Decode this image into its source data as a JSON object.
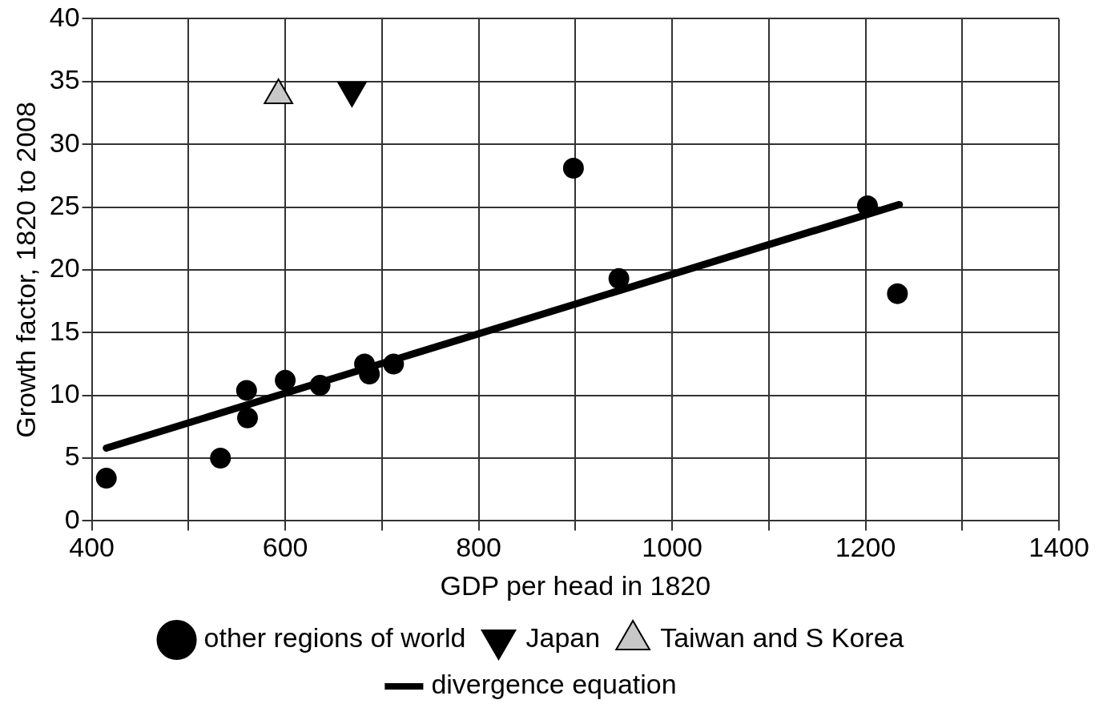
{
  "chart_data": {
    "type": "scatter",
    "xlabel": "GDP per head in 1820",
    "ylabel": "Growth factor, 1820 to 2008",
    "xlim": [
      400,
      1400
    ],
    "xticks": [
      400,
      {
        "value": 500,
        "label": null
      },
      600,
      {
        "value": 700,
        "label": null
      },
      800,
      {
        "value": 900,
        "label": null
      },
      1000,
      {
        "value": 1100,
        "label": null
      },
      1200,
      {
        "value": 1300,
        "label": null
      },
      1400
    ],
    "ylim": [
      0,
      40
    ],
    "yticks": [
      0,
      5,
      10,
      15,
      20,
      25,
      30,
      35,
      40
    ],
    "grid": true,
    "legend": "bottom",
    "series": [
      {
        "name": "other regions of world",
        "color": "#000000",
        "marker": "circle",
        "x": [
          415,
          533,
          560,
          561,
          600,
          636,
          682,
          687,
          712,
          898,
          945,
          1202,
          1233
        ],
        "values": [
          3.4,
          5.0,
          10.4,
          8.2,
          11.2,
          10.8,
          12.5,
          11.7,
          12.5,
          28.1,
          19.3,
          25.1,
          18.1
        ]
      },
      {
        "name": "Japan",
        "color": "#000000",
        "marker": "triangle_down",
        "x": [
          669
        ],
        "values": [
          34.3
        ]
      },
      {
        "name": "Taiwan and S Korea",
        "color": "#c8c8c8",
        "marker": "triangle",
        "x": [
          593
        ],
        "values": [
          33.9
        ]
      },
      {
        "name": "divergence equation",
        "type": "line",
        "color": "#000000",
        "marker": "none",
        "x": [
          415,
          1235
        ],
        "values": [
          5.8,
          25.2
        ]
      }
    ]
  }
}
